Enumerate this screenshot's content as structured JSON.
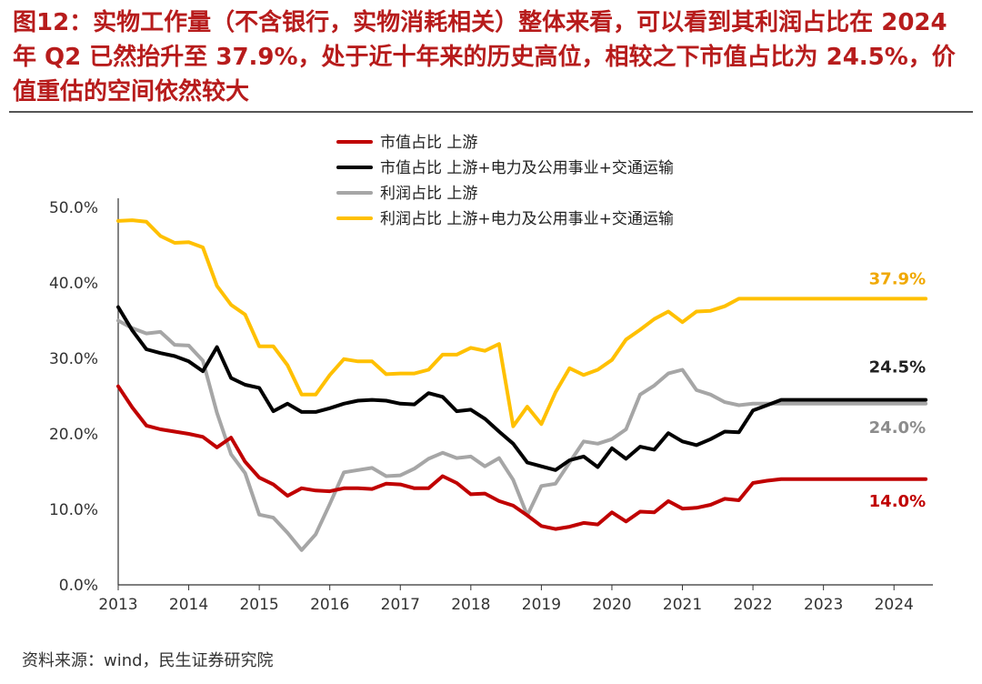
{
  "title": "图12：实物工作量（不含银行，实物消耗相关）整体来看，可以看到其利润占比在 2024 年 Q2 已然抬升至 37.9%，处于近十年来的历史高位，相较之下市值占比为 24.5%，价值重估的空间依然较大",
  "source": "资料来源：wind，民生证券研究院",
  "chart_data": {
    "type": "line",
    "y_ticks": [
      "0.0%",
      "10.0%",
      "20.0%",
      "30.0%",
      "40.0%",
      "50.0%"
    ],
    "ylim": [
      0,
      50
    ],
    "x_ticks": [
      "2013",
      "2014",
      "2015",
      "2016",
      "2017",
      "2018",
      "2019",
      "2020",
      "2021",
      "2022",
      "2023",
      "2024"
    ],
    "xlim": [
      2013,
      2024.5
    ],
    "grid": false,
    "legend_position": "top",
    "series": [
      {
        "name": "市值占比 上游",
        "color": "#c00000",
        "end_label": "14.0%",
        "x": [
          2013,
          2013.2,
          2013.4,
          2013.6,
          2013.8,
          2014,
          2014.2,
          2014.4,
          2014.6,
          2014.8,
          2015,
          2015.2,
          2015.4,
          2015.6,
          2015.8,
          2016,
          2016.2,
          2016.4,
          2016.6,
          2016.8,
          2017,
          2017.2,
          2017.4,
          2017.6,
          2017.8,
          2018,
          2018.2,
          2018.4,
          2018.6,
          2018.8,
          2019,
          2019.2,
          2019.4,
          2019.6,
          2019.8,
          2020,
          2020.2,
          2020.4,
          2020.6,
          2020.8,
          2021,
          2021.2,
          2021.4,
          2021.6,
          2021.8,
          2022,
          2022.2,
          2022.4,
          2022.6,
          2022.8,
          2023,
          2023.2,
          2023.4,
          2023.6,
          2023.8,
          2024,
          2024.2,
          2024.45
        ],
        "values": [
          26.3,
          23.5,
          21.1,
          20.6,
          20.3,
          20.0,
          19.6,
          18.2,
          19.5,
          16.3,
          14.2,
          13.3,
          11.8,
          12.8,
          12.5,
          12.4,
          12.8,
          12.8,
          12.7,
          13.4,
          13.3,
          12.8,
          12.8,
          14.4,
          13.5,
          12.0,
          12.1,
          11.1,
          10.5,
          9.2,
          7.8,
          7.4,
          7.7,
          8.2,
          8.0,
          9.6,
          8.4,
          9.7,
          9.6,
          11.1,
          10.1,
          10.2,
          10.6,
          11.4,
          11.2,
          13.5,
          13.8,
          14.0,
          14.0,
          14.0,
          14.0,
          14.0,
          14.0,
          14.0,
          14.0,
          14.0,
          14.0,
          14.0
        ]
      },
      {
        "name": "市值占比 上游+电力及公用事业+交通运输",
        "color": "#000000",
        "end_label": "24.5%",
        "x": [
          2013,
          2013.2,
          2013.4,
          2013.6,
          2013.8,
          2014,
          2014.2,
          2014.4,
          2014.6,
          2014.8,
          2015,
          2015.2,
          2015.4,
          2015.6,
          2015.8,
          2016,
          2016.2,
          2016.4,
          2016.6,
          2016.8,
          2017,
          2017.2,
          2017.4,
          2017.6,
          2017.8,
          2018,
          2018.2,
          2018.4,
          2018.6,
          2018.8,
          2019,
          2019.2,
          2019.4,
          2019.6,
          2019.8,
          2020,
          2020.2,
          2020.4,
          2020.6,
          2020.8,
          2021,
          2021.2,
          2021.4,
          2021.6,
          2021.8,
          2022,
          2022.2,
          2022.4,
          2022.6,
          2022.8,
          2023,
          2023.2,
          2023.4,
          2023.6,
          2023.8,
          2024,
          2024.2,
          2024.45
        ],
        "values": [
          36.8,
          33.7,
          31.2,
          30.7,
          30.3,
          29.6,
          28.3,
          31.5,
          27.4,
          26.5,
          26.1,
          23.0,
          24.0,
          22.9,
          22.9,
          23.4,
          24.0,
          24.4,
          24.5,
          24.4,
          24.0,
          23.9,
          25.4,
          24.9,
          23.0,
          23.2,
          22.0,
          20.3,
          18.7,
          16.2,
          15.7,
          15.2,
          16.5,
          17.0,
          15.6,
          18.1,
          16.7,
          18.3,
          17.9,
          20.1,
          19.0,
          18.5,
          19.3,
          20.3,
          20.2,
          23.1,
          23.8,
          24.5,
          24.5,
          24.5,
          24.5,
          24.5,
          24.5,
          24.5,
          24.5,
          24.5,
          24.5,
          24.5
        ]
      },
      {
        "name": "利润占比 上游",
        "color": "#a6a6a6",
        "end_label": "24.0%",
        "x": [
          2013,
          2013.2,
          2013.4,
          2013.6,
          2013.8,
          2014,
          2014.2,
          2014.4,
          2014.6,
          2014.8,
          2015,
          2015.2,
          2015.4,
          2015.6,
          2015.8,
          2016,
          2016.2,
          2016.4,
          2016.6,
          2016.8,
          2017,
          2017.2,
          2017.4,
          2017.6,
          2017.8,
          2018,
          2018.2,
          2018.4,
          2018.6,
          2018.8,
          2019,
          2019.2,
          2019.4,
          2019.6,
          2019.8,
          2020,
          2020.2,
          2020.4,
          2020.6,
          2020.8,
          2021,
          2021.2,
          2021.4,
          2021.6,
          2021.8,
          2022,
          2022.2,
          2022.4,
          2022.6,
          2022.8,
          2023,
          2023.2,
          2023.4,
          2023.6,
          2023.8,
          2024,
          2024.2,
          2024.45
        ],
        "values": [
          35.0,
          34.0,
          33.3,
          33.5,
          31.8,
          31.7,
          29.7,
          22.8,
          17.3,
          14.8,
          9.3,
          8.9,
          6.9,
          4.6,
          6.7,
          10.7,
          14.9,
          15.2,
          15.5,
          14.4,
          14.5,
          15.4,
          16.7,
          17.5,
          16.8,
          17.0,
          15.7,
          16.8,
          13.9,
          9.2,
          13.1,
          13.4,
          16.2,
          19.0,
          18.7,
          19.3,
          20.6,
          25.2,
          26.4,
          28.0,
          28.5,
          25.8,
          25.2,
          24.2,
          23.8,
          24.0,
          24.0,
          24.0,
          24.0,
          24.0,
          24.0,
          24.0,
          24.0,
          24.0,
          24.0,
          24.0,
          24.0,
          24.0
        ]
      },
      {
        "name": "利润占比 上游+电力及公用事业+交通运输",
        "color": "#ffc000",
        "end_label": "37.9%",
        "x": [
          2013,
          2013.2,
          2013.4,
          2013.6,
          2013.8,
          2014,
          2014.2,
          2014.4,
          2014.6,
          2014.8,
          2015,
          2015.2,
          2015.4,
          2015.6,
          2015.8,
          2016,
          2016.2,
          2016.4,
          2016.6,
          2016.8,
          2017,
          2017.2,
          2017.4,
          2017.6,
          2017.8,
          2018,
          2018.2,
          2018.4,
          2018.6,
          2018.8,
          2019,
          2019.2,
          2019.4,
          2019.6,
          2019.8,
          2020,
          2020.2,
          2020.4,
          2020.6,
          2020.8,
          2021,
          2021.2,
          2021.4,
          2021.6,
          2021.8,
          2022,
          2022.2,
          2022.4,
          2022.6,
          2022.8,
          2023,
          2023.2,
          2023.4,
          2023.6,
          2023.8,
          2024,
          2024.2,
          2024.45
        ],
        "values": [
          48.2,
          48.3,
          48.1,
          46.2,
          45.3,
          45.4,
          44.7,
          39.6,
          37.1,
          35.8,
          31.6,
          31.6,
          29.1,
          25.2,
          25.2,
          27.8,
          29.9,
          29.6,
          29.6,
          27.9,
          28.0,
          28.0,
          28.5,
          30.5,
          30.5,
          31.4,
          31.0,
          31.9,
          21.0,
          23.6,
          21.3,
          25.5,
          28.7,
          27.8,
          28.5,
          29.8,
          32.5,
          33.8,
          35.2,
          36.2,
          34.8,
          36.2,
          36.3,
          36.9,
          37.9,
          37.9,
          37.9,
          37.9,
          37.9,
          37.9,
          37.9,
          37.9,
          37.9,
          37.9,
          37.9,
          37.9,
          37.9,
          37.9
        ]
      }
    ]
  }
}
